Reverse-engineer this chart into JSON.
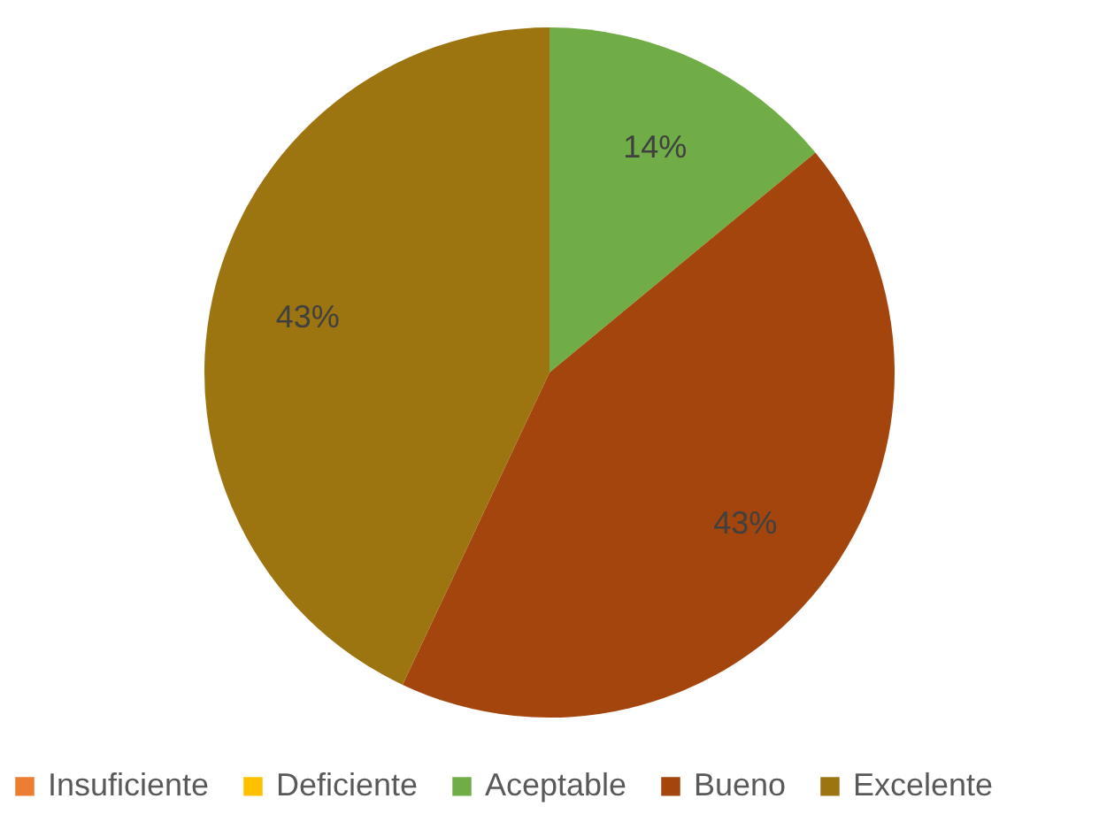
{
  "chart_data": {
    "type": "pie",
    "categories": [
      "Insuficiente",
      "Deficiente",
      "Aceptable",
      "Bueno",
      "Excelente"
    ],
    "values": [
      0,
      0,
      14,
      43,
      43
    ],
    "colors": [
      "#ed7d31",
      "#ffc000",
      "#70ad47",
      "#a3450c",
      "#9c7410"
    ],
    "value_labels": [
      null,
      null,
      "14%",
      "43%",
      "43%"
    ],
    "legend": "bottom"
  }
}
